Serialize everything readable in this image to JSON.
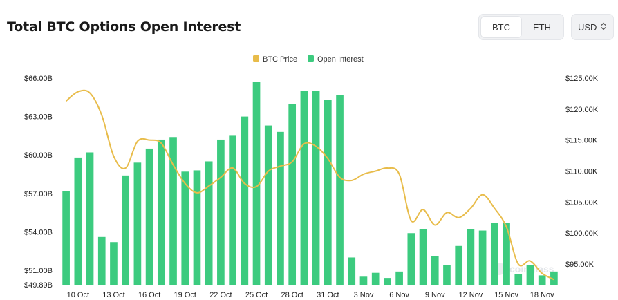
{
  "header": {
    "title": "Total BTC Options Open Interest",
    "asset_toggle": [
      "BTC",
      "ETH"
    ],
    "selected_asset": "BTC",
    "currency": "USD",
    "currency_icon": "chevron-updown-icon"
  },
  "watermark": "coinglass",
  "chart_data": {
    "type": "bar",
    "legend_position": "top-center",
    "grid": false,
    "series": [
      {
        "name": "BTC Price",
        "type": "line",
        "color": "#E8BC4A",
        "axis": "right",
        "values": [
          121300,
          122800,
          122600,
          119000,
          112400,
          110500,
          114800,
          115000,
          114500,
          111000,
          108000,
          106500,
          107600,
          109000,
          110500,
          108000,
          107500,
          110000,
          110800,
          111500,
          114400,
          114000,
          112000,
          109000,
          108500,
          109500,
          110000,
          110500,
          109500,
          102000,
          103800,
          101300,
          103300,
          102500,
          104000,
          106200,
          104000,
          101000,
          95000,
          95500,
          93500,
          92500
        ]
      },
      {
        "name": "Open Interest",
        "type": "bar",
        "color": "#3CCB7F",
        "axis": "left",
        "values": [
          57.2,
          59.8,
          60.2,
          53.6,
          53.2,
          58.4,
          59.4,
          60.5,
          61.2,
          61.4,
          58.7,
          58.8,
          59.5,
          61.2,
          61.5,
          63.0,
          65.7,
          62.3,
          61.8,
          64.0,
          65.0,
          65.0,
          64.3,
          64.7,
          52.0,
          50.5,
          50.8,
          50.4,
          50.9,
          53.9,
          54.2,
          52.1,
          51.4,
          52.9,
          54.2,
          54.1,
          54.7,
          54.7,
          50.7,
          51.4,
          50.6,
          50.9
        ]
      }
    ],
    "x_tick_labels": [
      "10 Oct",
      "13 Oct",
      "16 Oct",
      "19 Oct",
      "22 Oct",
      "25 Oct",
      "28 Oct",
      "31 Oct",
      "3 Nov",
      "6 Nov",
      "9 Nov",
      "12 Nov",
      "15 Nov",
      "18 Nov"
    ],
    "left_axis": {
      "ticks": [
        "$66.00B",
        "$63.00B",
        "$60.00B",
        "$57.00B",
        "$54.00B",
        "$51.00B",
        "$49.89B"
      ],
      "range": [
        49.89,
        66.0
      ]
    },
    "right_axis": {
      "ticks": [
        "$125.00K",
        "$120.00K",
        "$115.00K",
        "$110.00K",
        "$105.00K",
        "$100.00K",
        "$95.00K"
      ],
      "range": [
        91000,
        126000
      ]
    }
  }
}
